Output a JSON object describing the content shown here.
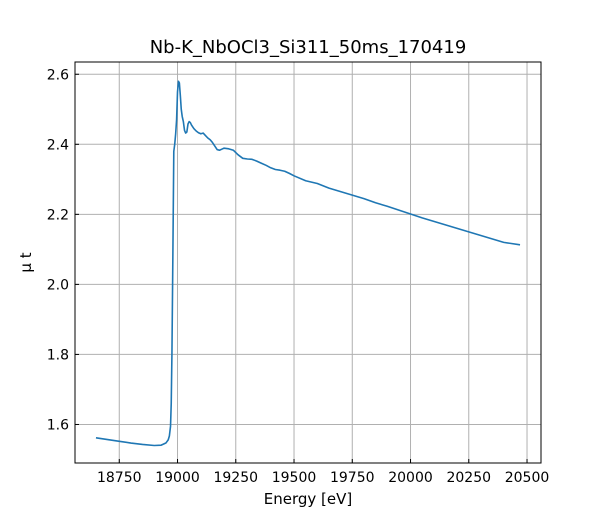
{
  "chart_data": {
    "type": "line",
    "title": "Nb-K_NbOCl3_Si311_50ms_170419",
    "xlabel": "Energy [eV]",
    "ylabel": "μ t",
    "xlim": [
      18560,
      20560
    ],
    "ylim": [
      1.49,
      2.635
    ],
    "xticks": [
      18750,
      19000,
      19250,
      19500,
      19750,
      20000,
      20250,
      20500
    ],
    "yticks": [
      1.6,
      1.8,
      2.0,
      2.2,
      2.4,
      2.6
    ],
    "xtick_labels": [
      "18750",
      "19000",
      "19250",
      "19500",
      "19750",
      "20000",
      "20250",
      "20500"
    ],
    "ytick_labels": [
      "1.6",
      "1.8",
      "2.0",
      "2.2",
      "2.4",
      "2.6"
    ],
    "grid": true,
    "line_color": "#1f77b4",
    "series": [
      {
        "x": [
          18650,
          18700,
          18750,
          18800,
          18850,
          18900,
          18930,
          18950,
          18960,
          18965,
          18970,
          18973,
          18976,
          18980,
          18984,
          18988,
          18992,
          18996,
          19000,
          19004,
          19008,
          19012,
          19016,
          19020,
          19025,
          19030,
          19035,
          19040,
          19045,
          19050,
          19055,
          19060,
          19070,
          19080,
          19090,
          19100,
          19110,
          19120,
          19130,
          19140,
          19150,
          19160,
          19170,
          19180,
          19190,
          19200,
          19220,
          19240,
          19260,
          19280,
          19300,
          19320,
          19340,
          19360,
          19380,
          19400,
          19420,
          19440,
          19460,
          19480,
          19500,
          19550,
          19600,
          19650,
          19700,
          19750,
          19800,
          19850,
          19900,
          19950,
          20000,
          20050,
          20100,
          20150,
          20200,
          20250,
          20300,
          20350,
          20400,
          20470
        ],
        "y": [
          1.562,
          1.557,
          1.552,
          1.547,
          1.543,
          1.54,
          1.541,
          1.547,
          1.556,
          1.567,
          1.595,
          1.66,
          1.8,
          2.08,
          2.38,
          2.4,
          2.43,
          2.47,
          2.55,
          2.58,
          2.575,
          2.54,
          2.5,
          2.48,
          2.465,
          2.44,
          2.432,
          2.435,
          2.458,
          2.465,
          2.462,
          2.455,
          2.445,
          2.438,
          2.433,
          2.43,
          2.432,
          2.425,
          2.418,
          2.413,
          2.405,
          2.395,
          2.385,
          2.383,
          2.386,
          2.389,
          2.387,
          2.383,
          2.37,
          2.36,
          2.358,
          2.357,
          2.352,
          2.346,
          2.34,
          2.333,
          2.328,
          2.326,
          2.323,
          2.317,
          2.31,
          2.296,
          2.288,
          2.275,
          2.265,
          2.255,
          2.245,
          2.233,
          2.223,
          2.212,
          2.201,
          2.19,
          2.18,
          2.17,
          2.16,
          2.15,
          2.14,
          2.13,
          2.12,
          2.113
        ]
      }
    ]
  }
}
